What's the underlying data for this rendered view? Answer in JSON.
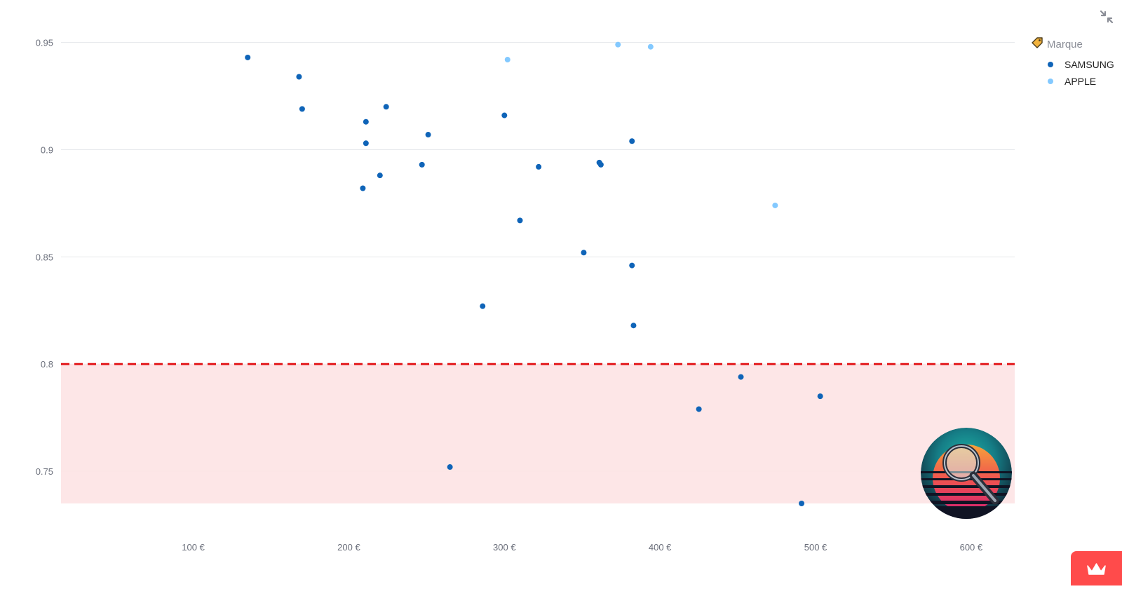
{
  "chart_data": {
    "type": "scatter",
    "title": "",
    "xlabel": "",
    "ylabel": "",
    "xlim": [
      15,
      628
    ],
    "ylim": [
      0.735,
      0.96
    ],
    "x_ticks": [
      {
        "value": 100,
        "label": "100 €"
      },
      {
        "value": 200,
        "label": "200 €"
      },
      {
        "value": 300,
        "label": "300 €"
      },
      {
        "value": 400,
        "label": "400 €"
      },
      {
        "value": 500,
        "label": "500 €"
      },
      {
        "value": 600,
        "label": "600 €"
      }
    ],
    "y_ticks": [
      {
        "value": 0.75,
        "label": "0.75"
      },
      {
        "value": 0.8,
        "label": "0.8"
      },
      {
        "value": 0.85,
        "label": "0.85"
      },
      {
        "value": 0.9,
        "label": "0.9"
      },
      {
        "value": 0.95,
        "label": "0.95"
      }
    ],
    "grid": "horizontal",
    "threshold": {
      "value": 0.8,
      "color": "#e3191c",
      "style": "dashed"
    },
    "below_threshold_region": {
      "from": 0.735,
      "to": 0.8,
      "color": "#fde3e4"
    },
    "legend": {
      "title": "Marque",
      "position": "top-right"
    },
    "series": [
      {
        "name": "SAMSUNG",
        "color": "#0f64b8",
        "points": [
          [
            135,
            0.943
          ],
          [
            168,
            0.934
          ],
          [
            170,
            0.919
          ],
          [
            211,
            0.913
          ],
          [
            211,
            0.903
          ],
          [
            209,
            0.882
          ],
          [
            220,
            0.888
          ],
          [
            224,
            0.92
          ],
          [
            247,
            0.893
          ],
          [
            251,
            0.907
          ],
          [
            300,
            0.916
          ],
          [
            310,
            0.867
          ],
          [
            322,
            0.892
          ],
          [
            361,
            0.894
          ],
          [
            362,
            0.893
          ],
          [
            382,
            0.904
          ],
          [
            351,
            0.852
          ],
          [
            382,
            0.846
          ],
          [
            286,
            0.827
          ],
          [
            383,
            0.818
          ],
          [
            265,
            0.752
          ],
          [
            425,
            0.779
          ],
          [
            452,
            0.794
          ],
          [
            503,
            0.785
          ],
          [
            491,
            0.735
          ]
        ]
      },
      {
        "name": "APPLE",
        "color": "#83c9ff",
        "points": [
          [
            302,
            0.942
          ],
          [
            373,
            0.949
          ],
          [
            394,
            0.948
          ],
          [
            474,
            0.874
          ]
        ]
      }
    ]
  },
  "icons": {
    "legend_tag_icon": "tag-icon",
    "shrink_icon": "collapse-arrows-icon",
    "crown_icon": "crown-icon",
    "logo": "magnifier-logo"
  },
  "colors": {
    "accent": "#ff4b4b",
    "grid": "#e6e8ec",
    "tick_text": "#6b6f7b"
  }
}
